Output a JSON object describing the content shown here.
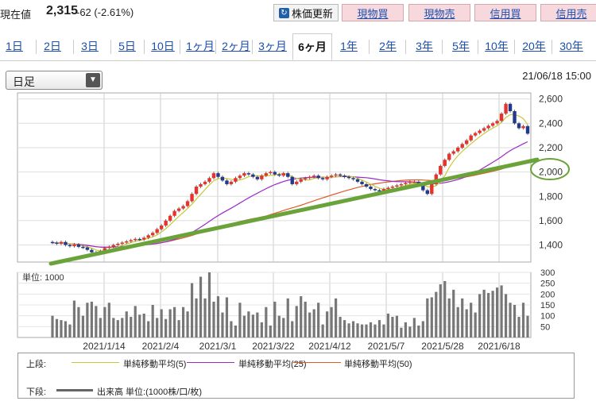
{
  "header": {
    "price_label": "現在値",
    "price_value": "2,315",
    "price_change": "-62 (-2.61%)",
    "refresh_label": "株価更新",
    "buttons": [
      "現物買",
      "現物売",
      "信用買",
      "信用売"
    ]
  },
  "tabs": [
    "1日",
    "2日",
    "3日",
    "5日",
    "10日",
    "1ヶ月",
    "2ヶ月",
    "3ヶ月",
    "6ヶ月",
    "1年",
    "2年",
    "3年",
    "5年",
    "10年",
    "20年",
    "30年"
  ],
  "active_tab": "6ヶ月",
  "period_select": "日足",
  "timestamp": "21/06/18 15:00",
  "legend": {
    "upper_label": "上段:",
    "ma5": "単純移動平均(5)",
    "ma25": "単純移動平均(25)",
    "ma50": "単純移動平均(50)",
    "lower_label": "下段:",
    "volume": "出来高 単位:(1000株/口/枚)"
  },
  "colors": {
    "ma5": "#c8c83c",
    "ma25": "#9b2bc8",
    "ma50": "#e05a28",
    "trendline": "#6aa33a",
    "up": "#e8332b",
    "down": "#233a8c",
    "volume": "#777777"
  },
  "chart_data": {
    "type": "candlestick",
    "x_ticks": [
      "2021/1/14",
      "2021/2/4",
      "2021/3/1",
      "2021/3/22",
      "2021/4/12",
      "2021/5/7",
      "2021/5/28",
      "2021/6/18"
    ],
    "price_ticks": [
      "2,600",
      "2,400",
      "2,200",
      "2,000",
      "1,800",
      "1,600",
      "1,400"
    ],
    "price_range": [
      1260,
      2650
    ],
    "highlighted_level": "2,000",
    "volume_unit": "単位: 1000",
    "volume_ticks": [
      "300",
      "250",
      "200",
      "150",
      "100",
      "50"
    ],
    "volume_range": [
      0,
      300
    ],
    "close": [
      1420,
      1410,
      1425,
      1400,
      1390,
      1405,
      1385,
      1380,
      1360,
      1340,
      1330,
      1350,
      1375,
      1385,
      1400,
      1410,
      1420,
      1430,
      1440,
      1450,
      1445,
      1460,
      1480,
      1500,
      1530,
      1560,
      1600,
      1640,
      1680,
      1700,
      1720,
      1760,
      1820,
      1880,
      1900,
      1920,
      1950,
      1990,
      1960,
      1930,
      1900,
      1920,
      1950,
      1970,
      1990,
      1980,
      1960,
      1940,
      1970,
      1990,
      2000,
      1980,
      1970,
      1990,
      1960,
      1900,
      1920,
      1940,
      1950,
      1960,
      1970,
      1950,
      1940,
      1960,
      1970,
      1980,
      1970,
      1960,
      1950,
      1940,
      1920,
      1900,
      1880,
      1860,
      1850,
      1840,
      1860,
      1870,
      1880,
      1890,
      1900,
      1910,
      1920,
      1920,
      1890,
      1850,
      1820,
      1900,
      1980,
      2050,
      2100,
      2150,
      2170,
      2200,
      2230,
      2260,
      2300,
      2320,
      2340,
      2360,
      2380,
      2400,
      2420,
      2480,
      2560,
      2500,
      2400,
      2360,
      2377,
      2315
    ],
    "volume": [
      100,
      85,
      80,
      75,
      60,
      170,
      140,
      100,
      160,
      165,
      145,
      90,
      140,
      160,
      90,
      80,
      90,
      120,
      95,
      145,
      105,
      110,
      75,
      150,
      90,
      130,
      85,
      130,
      140,
      80,
      140,
      120,
      250,
      180,
      280,
      180,
      300,
      165,
      190,
      115,
      185,
      75,
      55,
      160,
      100,
      120,
      105,
      115,
      70,
      140,
      55,
      165,
      100,
      90,
      180,
      75,
      145,
      190,
      165,
      115,
      130,
      160,
      60,
      120,
      140,
      180,
      95,
      80,
      65,
      75,
      65,
      60,
      60,
      70,
      60,
      80,
      60,
      110,
      95,
      100,
      45,
      70,
      50,
      90,
      55,
      75,
      180,
      185,
      210,
      245,
      260,
      180,
      220,
      140,
      180,
      130,
      160,
      115,
      200,
      220,
      205,
      215,
      230,
      240,
      200,
      160,
      150,
      95,
      160,
      100
    ]
  }
}
